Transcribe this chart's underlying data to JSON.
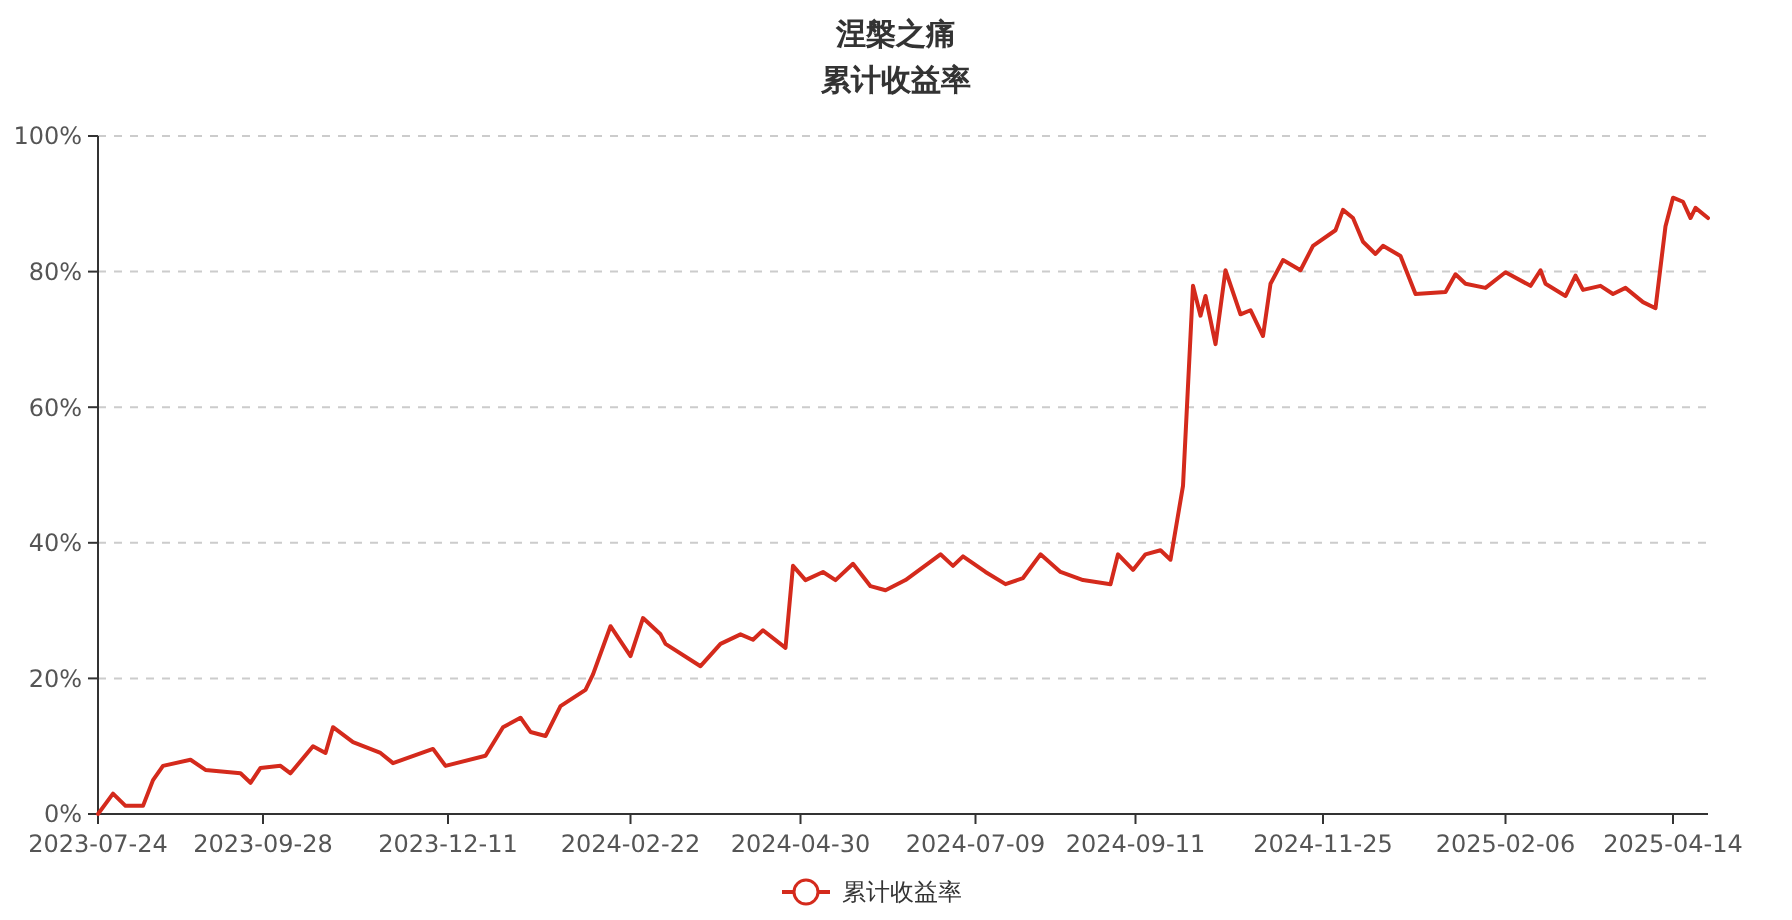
{
  "chart_data": {
    "type": "line",
    "title": "涅槃之痛",
    "subtitle": "累计收益率",
    "x": [
      "2023-07-24",
      "2023-07-27",
      "2023-07-30",
      "2023-08-04",
      "2023-08-11",
      "2023-08-15",
      "2023-08-19",
      "2023-08-30",
      "2023-09-05",
      "2023-09-19",
      "2023-09-23",
      "2023-09-27",
      "2023-10-05",
      "2023-10-09",
      "2023-10-18",
      "2023-10-23",
      "2023-10-26",
      "2023-11-03",
      "2023-11-14",
      "2023-11-19",
      "2023-12-05",
      "2023-12-10",
      "2023-12-26",
      "2024-01-02",
      "2024-01-09",
      "2024-01-13",
      "2024-01-19",
      "2024-01-25",
      "2024-02-04",
      "2024-02-07",
      "2024-02-14",
      "2024-02-22",
      "2024-02-27",
      "2024-03-05",
      "2024-03-07",
      "2024-03-21",
      "2024-03-29",
      "2024-04-06",
      "2024-04-11",
      "2024-04-15",
      "2024-04-24",
      "2024-04-27",
      "2024-05-02",
      "2024-05-09",
      "2024-05-14",
      "2024-05-21",
      "2024-05-28",
      "2024-06-03",
      "2024-06-11",
      "2024-06-25",
      "2024-06-30",
      "2024-07-04",
      "2024-07-13",
      "2024-07-21",
      "2024-07-28",
      "2024-08-04",
      "2024-08-12",
      "2024-08-21",
      "2024-09-01",
      "2024-09-04",
      "2024-09-10",
      "2024-09-15",
      "2024-09-21",
      "2024-09-25",
      "2024-09-30",
      "2024-10-04",
      "2024-10-07",
      "2024-10-09",
      "2024-10-13",
      "2024-10-17",
      "2024-10-23",
      "2024-10-27",
      "2024-11-01",
      "2024-11-04",
      "2024-11-09",
      "2024-11-16",
      "2024-11-21",
      "2024-11-30",
      "2024-12-03",
      "2024-12-07",
      "2024-12-11",
      "2024-12-16",
      "2024-12-19",
      "2024-12-26",
      "2025-01-01",
      "2025-01-13",
      "2025-01-17",
      "2025-01-21",
      "2025-01-29",
      "2025-02-06",
      "2025-02-16",
      "2025-02-20",
      "2025-02-22",
      "2025-03-02",
      "2025-03-06",
      "2025-03-09",
      "2025-03-16",
      "2025-03-21",
      "2025-03-26",
      "2025-04-02",
      "2025-04-07",
      "2025-04-11",
      "2025-04-14",
      "2025-04-18",
      "2025-04-21",
      "2025-04-23",
      "2025-04-28"
    ],
    "series": [
      {
        "name": "累计收益率",
        "color": "#d42a1c",
        "values": [
          0,
          1.5,
          3.0,
          1.2,
          1.2,
          5.0,
          7.1,
          8.0,
          6.5,
          6.0,
          4.6,
          6.8,
          7.1,
          6.0,
          10.0,
          9.0,
          12.8,
          10.6,
          9.0,
          7.5,
          9.6,
          7.1,
          8.6,
          12.8,
          14.2,
          12.1,
          11.5,
          15.9,
          18.3,
          20.6,
          27.7,
          23.3,
          28.9,
          26.5,
          25.1,
          21.8,
          25.1,
          26.5,
          25.7,
          27.1,
          24.5,
          36.6,
          34.5,
          35.7,
          34.5,
          36.9,
          33.6,
          33.0,
          34.5,
          38.3,
          36.6,
          38.0,
          35.7,
          33.9,
          34.8,
          38.3,
          35.7,
          34.5,
          33.9,
          38.3,
          36.0,
          38.3,
          38.9,
          37.5,
          48.4,
          77.9,
          73.5,
          76.4,
          69.3,
          80.2,
          73.7,
          74.3,
          70.5,
          78.2,
          81.7,
          80.2,
          83.8,
          86.1,
          89.1,
          87.9,
          84.4,
          82.6,
          83.8,
          82.3,
          76.7,
          77.0,
          79.6,
          78.2,
          77.6,
          79.9,
          77.9,
          80.2,
          78.2,
          76.4,
          79.4,
          77.3,
          77.9,
          76.7,
          77.6,
          75.5,
          74.6,
          86.7,
          90.9,
          90.3,
          87.9,
          89.4,
          87.9
        ]
      }
    ],
    "xlim": [
      "2023-07-24",
      "2025-04-28"
    ],
    "xticks": [
      {
        "value": "2023-07-24",
        "label": "2023-07-24"
      },
      {
        "value": "2023-09-28",
        "label": "2023-09-28"
      },
      {
        "value": "2023-12-11",
        "label": "2023-12-11"
      },
      {
        "value": "2024-02-22",
        "label": "2024-02-22"
      },
      {
        "value": "2024-04-30",
        "label": "2024-04-30"
      },
      {
        "value": "2024-07-09",
        "label": "2024-07-09"
      },
      {
        "value": "2024-09-11",
        "label": "2024-09-11"
      },
      {
        "value": "2024-11-25",
        "label": "2024-11-25"
      },
      {
        "value": "2025-02-06",
        "label": "2025-02-06"
      },
      {
        "value": "2025-04-14",
        "label": "2025-04-14"
      }
    ],
    "ylim": [
      0,
      100
    ],
    "yticks": [
      {
        "value": 0,
        "label": "0%"
      },
      {
        "value": 20,
        "label": "20%"
      },
      {
        "value": 40,
        "label": "40%"
      },
      {
        "value": 60,
        "label": "60%"
      },
      {
        "value": 80,
        "label": "80%"
      },
      {
        "value": 100,
        "label": "100%"
      }
    ],
    "grid": "y",
    "legend": "bottom",
    "line_style": "solid"
  }
}
